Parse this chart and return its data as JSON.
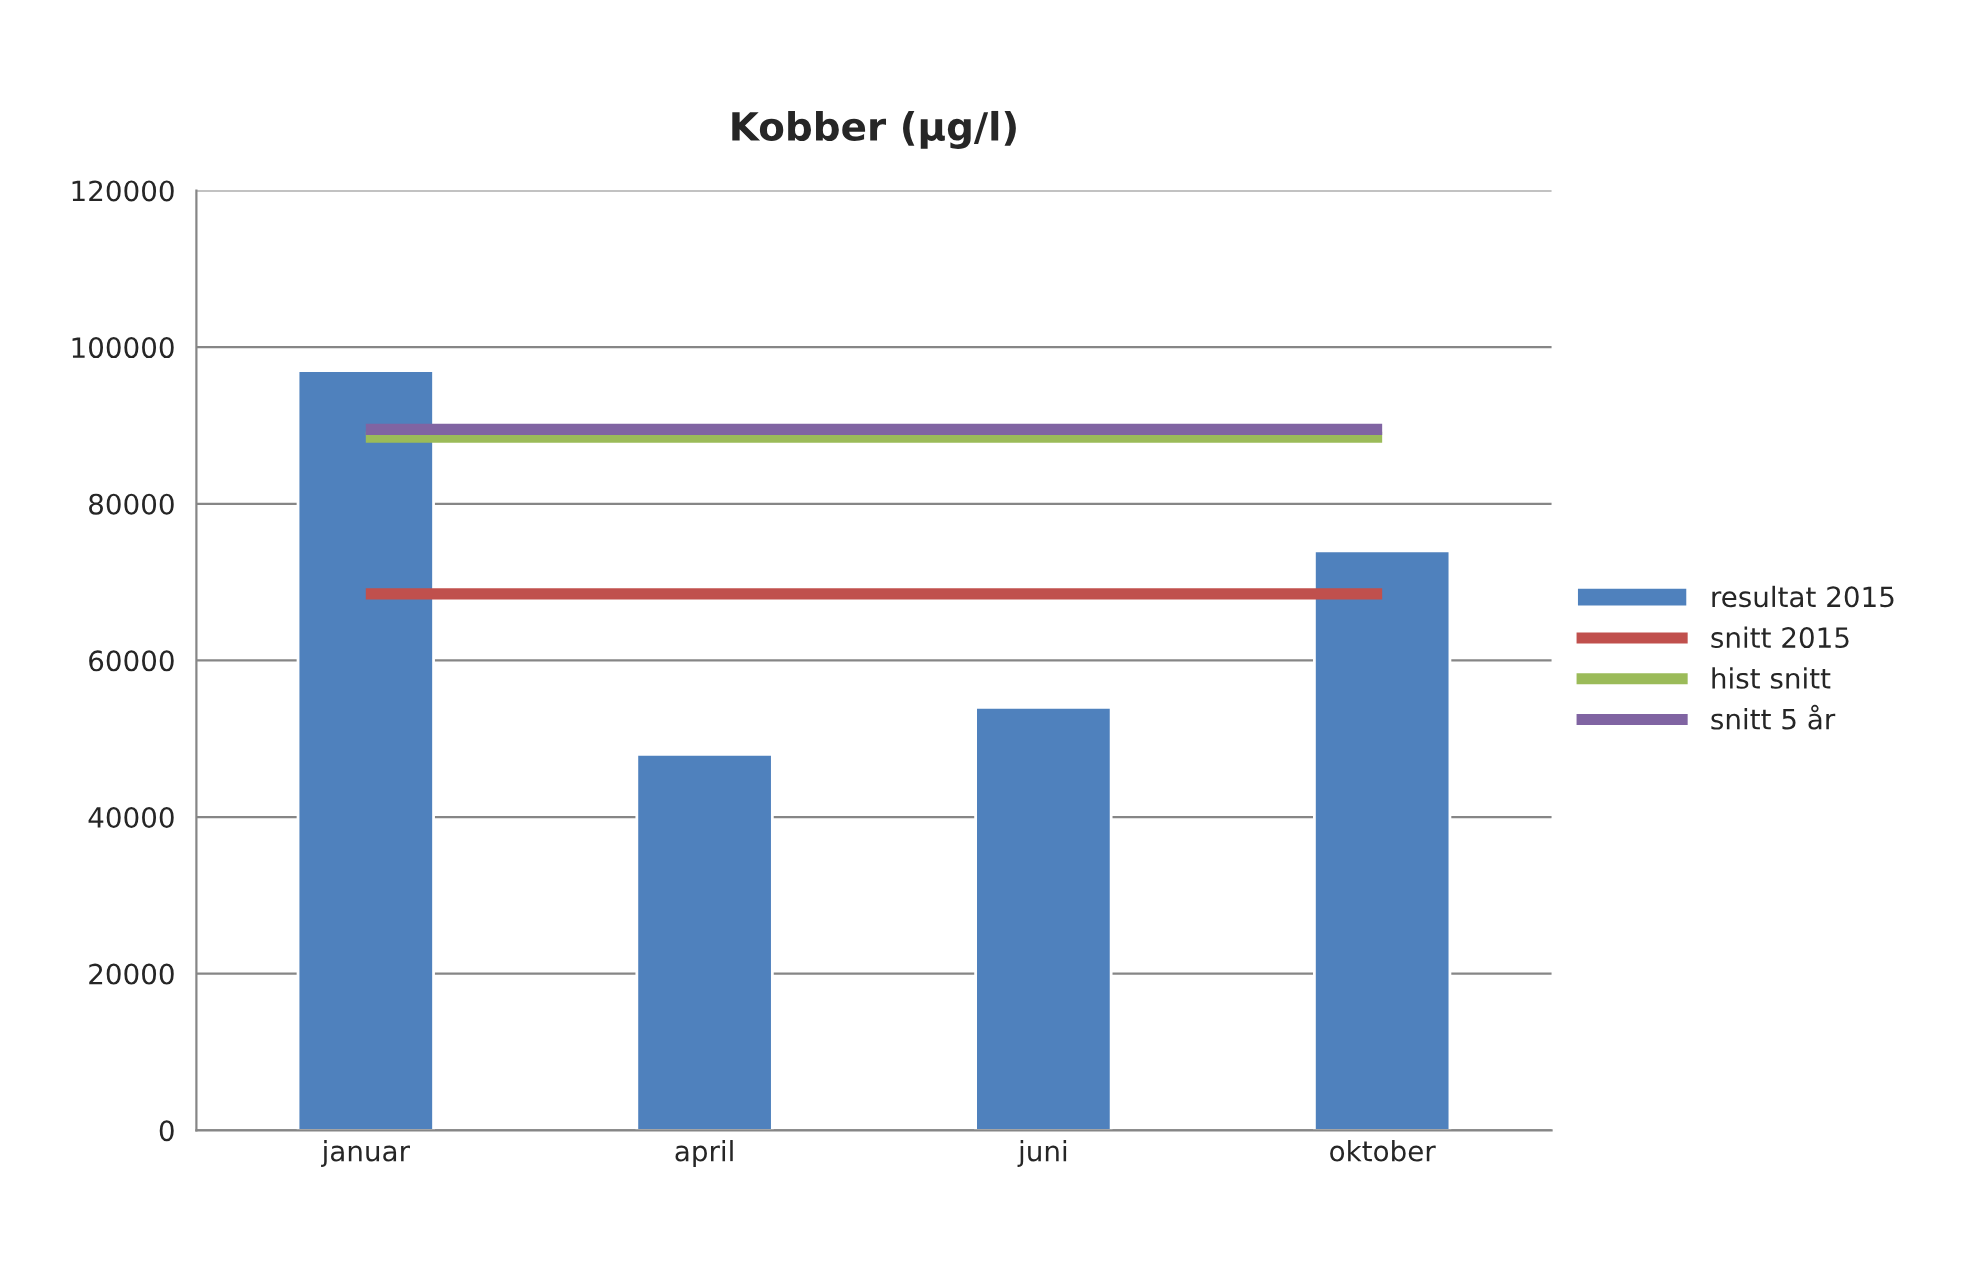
{
  "chart_data": {
    "type": "bar",
    "title": "Kobber (µg/l)",
    "categories": [
      "januar",
      "april",
      "juni",
      "oktober"
    ],
    "series": [
      {
        "name": "resultat 2015",
        "color": "#4f81bd",
        "values": [
          97000,
          48000,
          54000,
          74000
        ]
      },
      {
        "name": "snitt 2015",
        "type": "line",
        "color": "#c0504d",
        "values": [
          68500,
          68500,
          68500,
          68500
        ]
      },
      {
        "name": "hist snitt",
        "type": "line",
        "color": "#9bbb59",
        "values": [
          88500,
          88500,
          88500,
          88500
        ]
      },
      {
        "name": "snitt 5 år",
        "type": "line",
        "color": "#8064a2",
        "values": [
          89500,
          89500,
          89500,
          89500
        ]
      }
    ],
    "ylim": [
      0,
      120000
    ],
    "yticks": [
      0,
      20000,
      40000,
      60000,
      80000,
      100000,
      120000
    ],
    "grid": "y",
    "legend": "right"
  }
}
